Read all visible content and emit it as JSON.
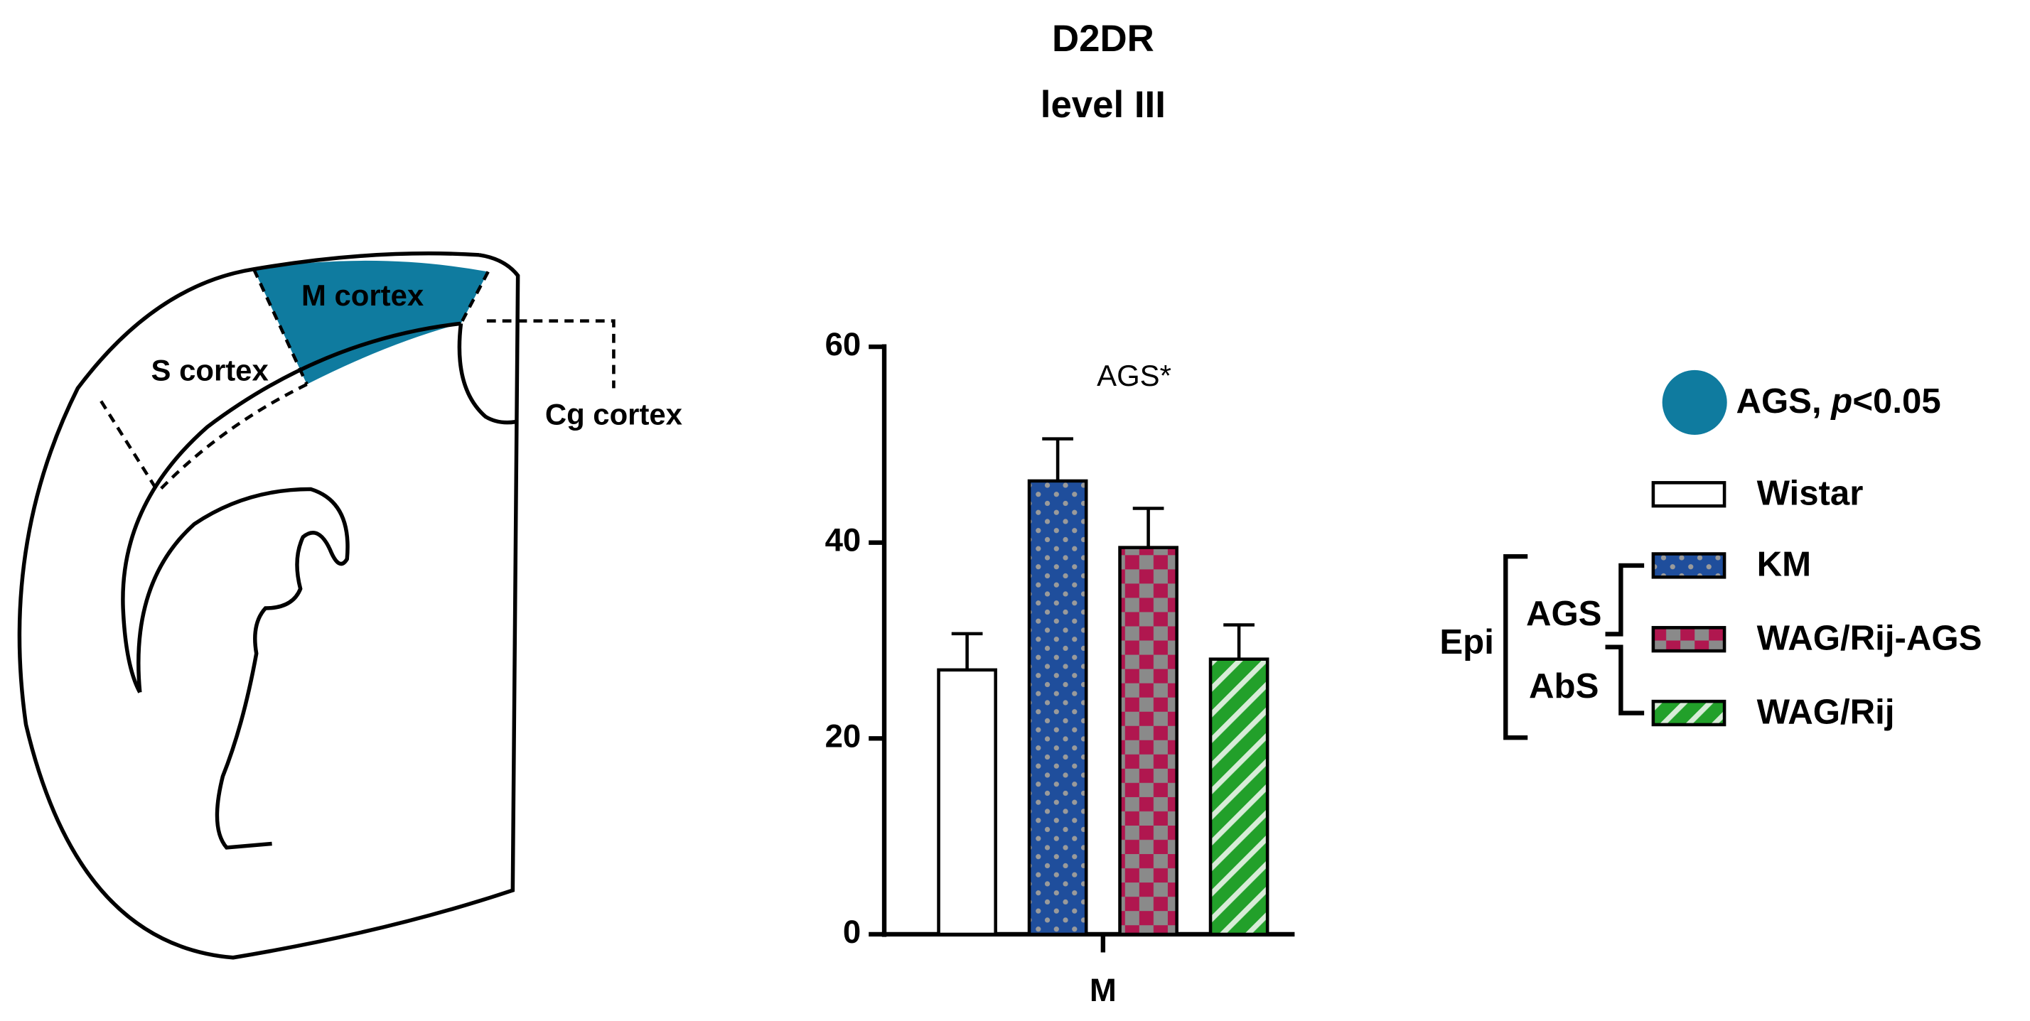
{
  "chart_data": {
    "type": "bar",
    "title": "D2DR",
    "subtitle": "level III",
    "categories": [
      "M"
    ],
    "annotation": "AGS*",
    "ylim": [
      0,
      60
    ],
    "yticks": [
      0,
      20,
      40,
      60
    ],
    "series": [
      {
        "name": "Wistar",
        "color": "#ffffff",
        "pattern": "none",
        "values": [
          27
        ],
        "errors": [
          3.7
        ]
      },
      {
        "name": "KM",
        "color": "#1f4e9c",
        "pattern": "dots",
        "values": [
          46.3
        ],
        "errors": [
          4.3
        ]
      },
      {
        "name": "WAG/Rij-AGS",
        "color": "#b0174f",
        "pattern": "checker",
        "values": [
          39.5
        ],
        "errors": [
          4
        ]
      },
      {
        "name": "WAG/Rij",
        "color": "#22a02a",
        "pattern": "stripes",
        "values": [
          28.1
        ],
        "errors": [
          3.5
        ]
      }
    ],
    "highlight_color": "#0f7b9f",
    "significance_legend": [
      "AGS,",
      "p",
      "<0.05"
    ],
    "groups": {
      "outer": "Epi",
      "upper": "AGS",
      "lower": "AbS"
    },
    "brain_labels": {
      "highlighted": "M cortex",
      "side": "S cortex",
      "medial": "Cg cortex"
    }
  }
}
